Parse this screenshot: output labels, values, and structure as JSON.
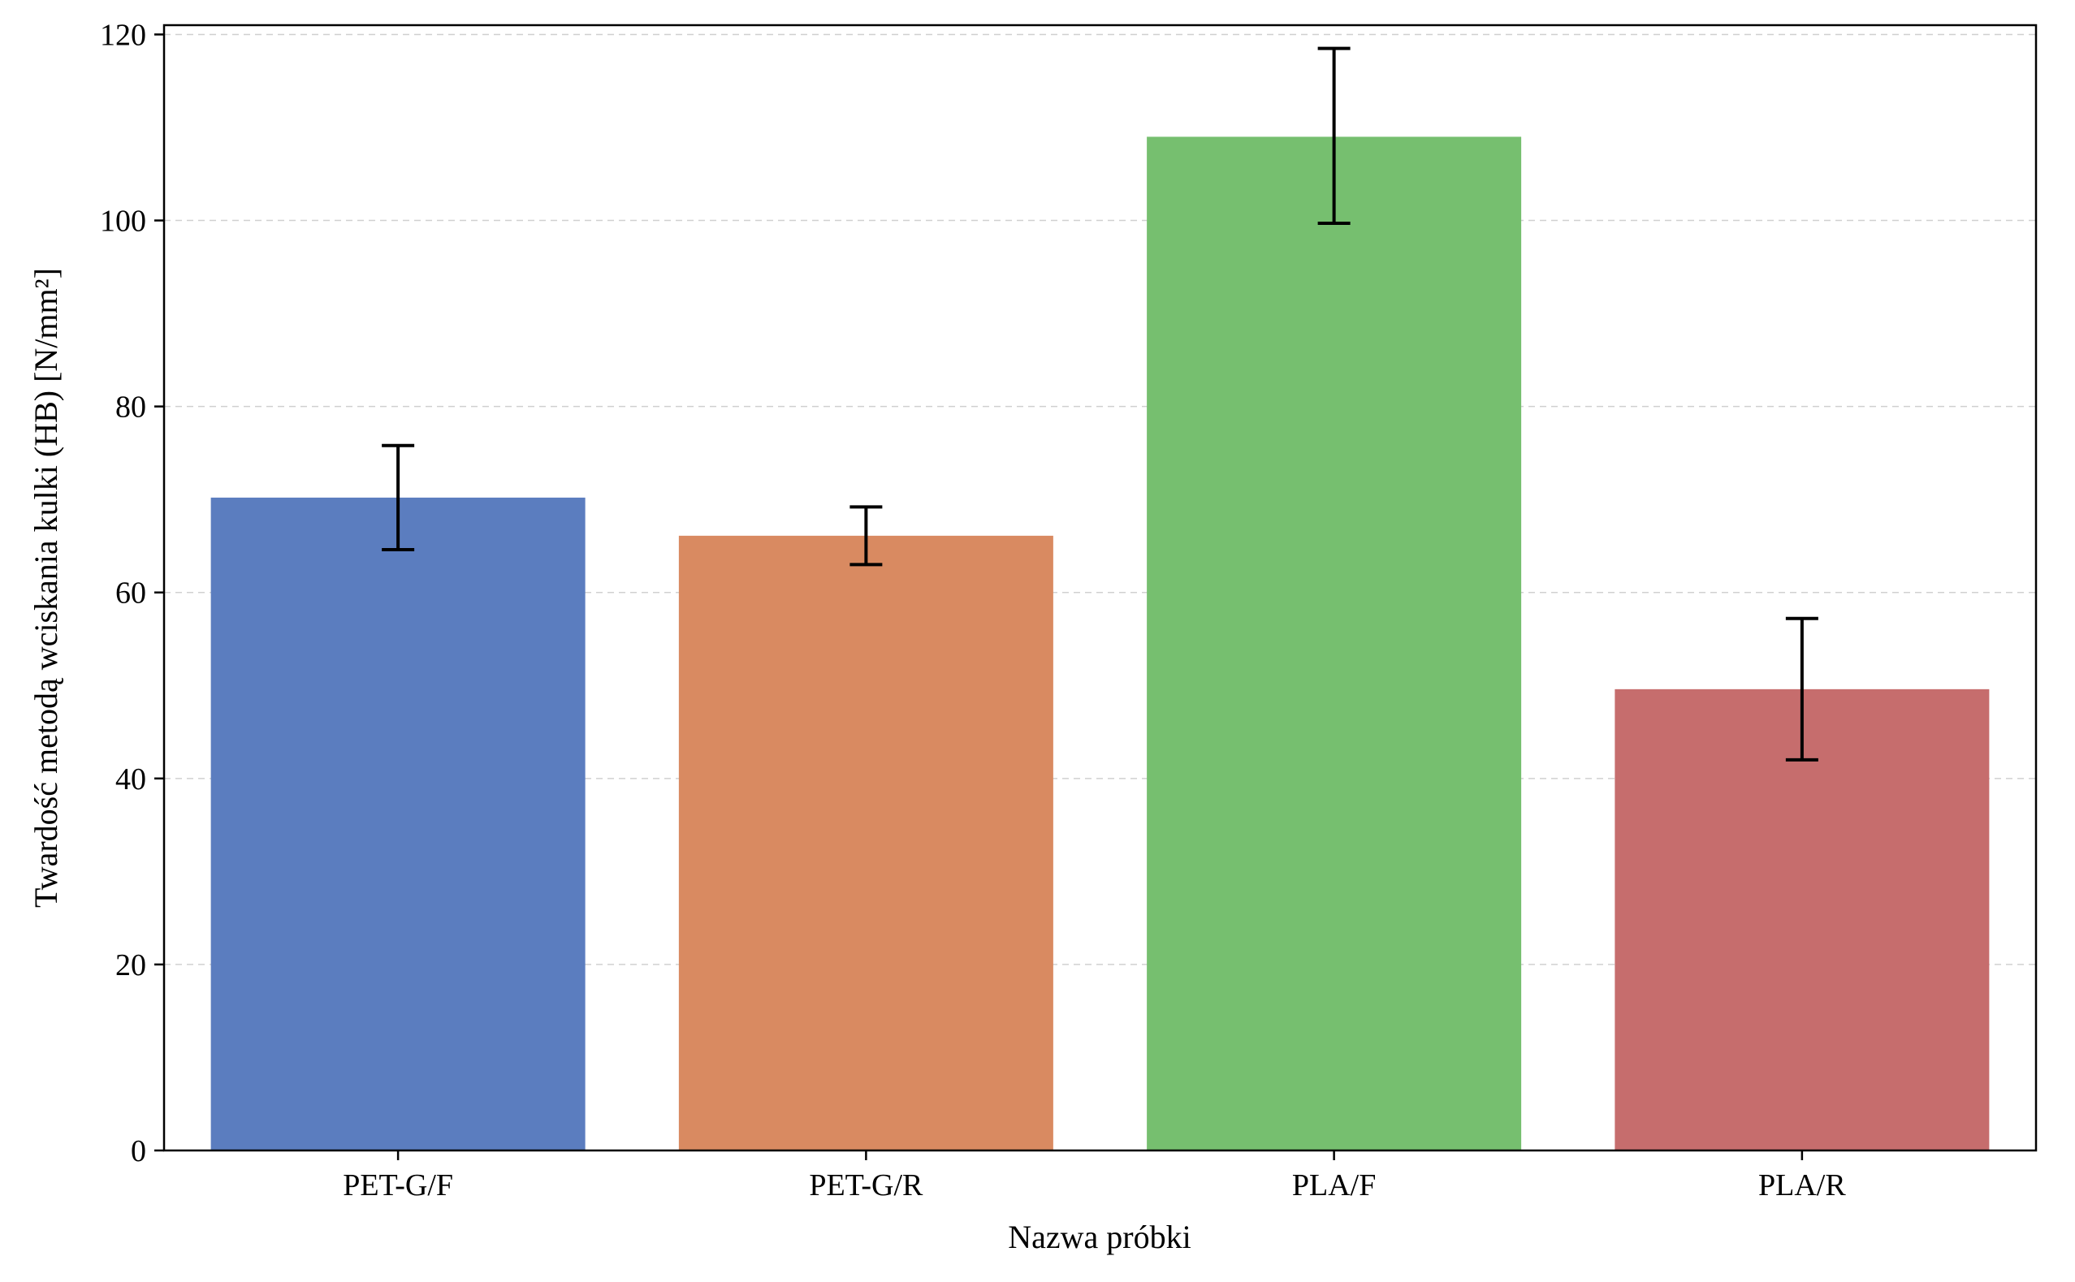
{
  "chart_data": {
    "type": "bar",
    "categories": [
      "PET-G/F",
      "PET-G/R",
      "PLA/F",
      "PLA/R"
    ],
    "values": [
      70.2,
      66.1,
      109.0,
      49.6
    ],
    "error_low": [
      64.6,
      63.0,
      99.7,
      42.0
    ],
    "error_high": [
      75.8,
      69.2,
      118.5,
      57.2
    ],
    "colors": [
      "#5b7dbf",
      "#d98a61",
      "#76bf6f",
      "#c66d6d"
    ],
    "xlabel": "Nazwa próbki",
    "ylabel": "Twardość metodą wciskania kulki (HB) [N/mm²]",
    "ylim": [
      0,
      121
    ],
    "yticks": [
      0,
      20,
      40,
      60,
      80,
      100,
      120
    ],
    "grid": "horizontal dashed"
  }
}
